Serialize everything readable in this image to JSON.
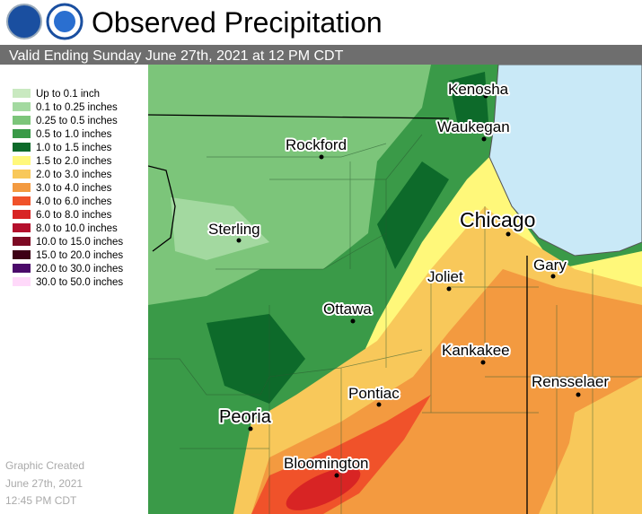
{
  "header": {
    "title": "Observed Precipitation",
    "subtitle": "Valid Ending Sunday June 27th, 2021 at 12 PM CDT"
  },
  "legend": {
    "items": [
      {
        "label": "Up to 0.1 inch",
        "color": "#c9e9c0"
      },
      {
        "label": "0.1 to 0.25 inches",
        "color": "#a3d9a0"
      },
      {
        "label": "0.25 to 0.5 inches",
        "color": "#7cc57a"
      },
      {
        "label": "0.5 to 1.0 inches",
        "color": "#3a9a48"
      },
      {
        "label": "1.0 to 1.5 inches",
        "color": "#0d6a2a"
      },
      {
        "label": "1.5 to 2.0 inches",
        "color": "#fff87a"
      },
      {
        "label": "2.0 to 3.0 inches",
        "color": "#f8c85a"
      },
      {
        "label": "3.0 to 4.0 inches",
        "color": "#f39a40"
      },
      {
        "label": "4.0 to 6.0 inches",
        "color": "#f0522a"
      },
      {
        "label": "6.0 to 8.0 inches",
        "color": "#d82424"
      },
      {
        "label": "8.0 to 10.0 inches",
        "color": "#b40f2c"
      },
      {
        "label": "10.0 to 15.0 inches",
        "color": "#7d0a24"
      },
      {
        "label": "15.0 to 20.0 inches",
        "color": "#3d0015"
      },
      {
        "label": "20.0 to 30.0 inches",
        "color": "#4b0a6a"
      },
      {
        "label": "30.0 to 50.0 inches",
        "color": "#ffd9fa"
      }
    ]
  },
  "cities": [
    "Kenosha",
    "Waukegan",
    "Rockford",
    "Sterling",
    "Chicago",
    "Gary",
    "Joliet",
    "Ottawa",
    "Kankakee",
    "Rensselaer",
    "Pontiac",
    "Peoria",
    "Bloomington"
  ],
  "footer": {
    "lines": [
      "Graphic Created",
      "June 27th, 2021",
      "12:45 PM CDT"
    ]
  }
}
